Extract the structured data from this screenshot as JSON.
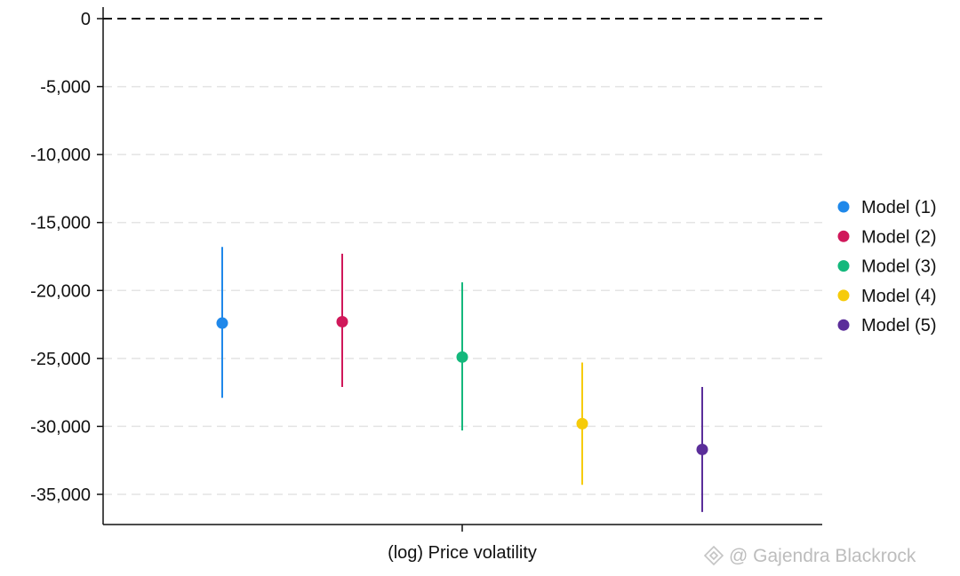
{
  "chart_data": {
    "type": "scatter",
    "subtype": "coefficient-plot",
    "xlabel": "(log) Price volatility",
    "ylim": [
      -37000,
      800
    ],
    "yticks": [
      0,
      -5000,
      -10000,
      -15000,
      -20000,
      -25000,
      -30000,
      -35000
    ],
    "ytick_labels": [
      "0",
      "-5,000",
      "-10,000",
      "-15,000",
      "-20,000",
      "-25,000",
      "-30,000",
      "-35,000"
    ],
    "grid": "horizontal-dashed",
    "reference_line": 0,
    "legend_position": "right",
    "series": [
      {
        "name": "Model (1)",
        "color": "#1f88ea",
        "estimate": -22400,
        "ci": [
          -27900,
          -16800
        ]
      },
      {
        "name": "Model (2)",
        "color": "#d0185a",
        "estimate": -22300,
        "ci": [
          -27100,
          -17300
        ]
      },
      {
        "name": "Model (3)",
        "color": "#14b87c",
        "estimate": -24900,
        "ci": [
          -30300,
          -19400
        ]
      },
      {
        "name": "Model (4)",
        "color": "#f6cb0a",
        "estimate": -29800,
        "ci": [
          -34300,
          -25300
        ]
      },
      {
        "name": "Model (5)",
        "color": "#5b2e9a",
        "estimate": -31700,
        "ci": [
          -36300,
          -27100
        ]
      }
    ]
  },
  "watermark": "@ Gajendra Blackrock"
}
